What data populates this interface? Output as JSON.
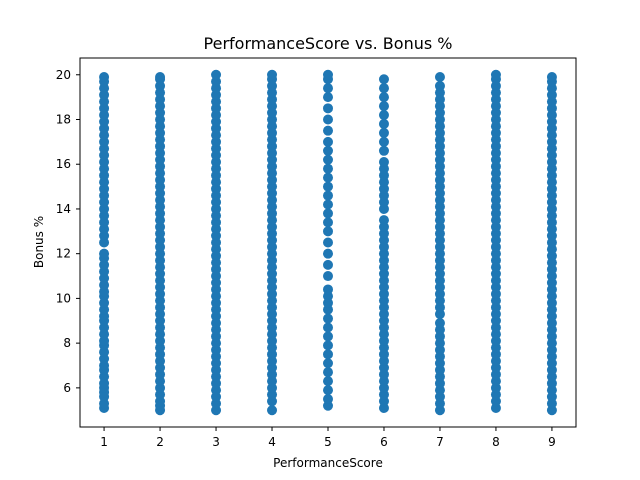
{
  "chart_data": {
    "type": "scatter",
    "title": "PerformanceScore vs. Bonus %",
    "xlabel": "PerformanceScore",
    "ylabel": "Bonus %",
    "xlim": [
      0.57,
      9.43
    ],
    "ylim": [
      4.25,
      20.75
    ],
    "xticks": [
      1,
      2,
      3,
      4,
      5,
      6,
      7,
      8,
      9
    ],
    "yticks": [
      6,
      8,
      10,
      12,
      14,
      16,
      18,
      20
    ],
    "grid": false,
    "marker_color": "#1f77b4",
    "series": [
      {
        "points": [
          {
            "x": 1,
            "y": [
              5.1,
              5.3,
              5.6,
              5.8,
              6.0,
              6.2,
              6.5,
              6.8,
              7.0,
              7.3,
              7.6,
              7.9,
              8.1,
              8.4,
              8.7,
              9.0,
              9.2,
              9.5,
              9.8,
              10.1,
              10.3,
              10.6,
              10.9,
              11.2,
              11.5,
              11.8,
              12.0,
              12.5,
              12.8,
              13.1,
              13.4,
              13.7,
              14.0,
              14.3,
              14.6,
              14.9,
              15.2,
              15.5,
              15.8,
              16.1,
              16.4,
              16.7,
              17.0,
              17.3,
              17.6,
              17.9,
              18.2,
              18.5,
              18.8,
              19.1,
              19.4,
              19.7,
              19.9
            ]
          },
          {
            "x": 2,
            "y": [
              5.0,
              5.2,
              5.4,
              5.7,
              6.0,
              6.3,
              6.6,
              6.9,
              7.2,
              7.5,
              7.8,
              8.1,
              8.4,
              8.7,
              9.0,
              9.3,
              9.6,
              9.9,
              10.2,
              10.5,
              10.8,
              11.1,
              11.4,
              11.7,
              12.0,
              12.3,
              12.6,
              12.9,
              13.2,
              13.5,
              13.8,
              14.1,
              14.4,
              14.7,
              15.0,
              15.3,
              15.6,
              15.9,
              16.2,
              16.5,
              16.8,
              17.1,
              17.4,
              17.7,
              18.0,
              18.3,
              18.6,
              18.9,
              19.2,
              19.5,
              19.8,
              19.9
            ]
          },
          {
            "x": 3,
            "y": [
              5.0,
              5.3,
              5.6,
              5.9,
              6.2,
              6.5,
              6.8,
              7.1,
              7.4,
              7.7,
              8.0,
              8.3,
              8.6,
              8.9,
              9.2,
              9.5,
              9.8,
              10.1,
              10.4,
              10.7,
              11.0,
              11.3,
              11.6,
              11.9,
              12.2,
              12.5,
              12.8,
              13.1,
              13.4,
              13.7,
              14.0,
              14.3,
              14.6,
              14.9,
              15.2,
              15.5,
              15.8,
              16.1,
              16.4,
              16.7,
              17.0,
              17.3,
              17.6,
              17.9,
              18.2,
              18.5,
              18.8,
              19.1,
              19.4,
              19.7,
              20.0
            ]
          },
          {
            "x": 4,
            "y": [
              5.0,
              5.4,
              5.7,
              6.0,
              6.3,
              6.6,
              6.9,
              7.2,
              7.5,
              7.8,
              8.1,
              8.4,
              8.7,
              9.0,
              9.3,
              9.6,
              9.9,
              10.2,
              10.5,
              10.8,
              11.1,
              11.4,
              11.7,
              12.0,
              12.3,
              12.6,
              12.9,
              13.2,
              13.5,
              13.8,
              14.1,
              14.4,
              14.7,
              15.0,
              15.3,
              15.6,
              15.9,
              16.2,
              16.5,
              16.8,
              17.1,
              17.4,
              17.7,
              18.0,
              18.3,
              18.6,
              18.9,
              19.2,
              19.5,
              19.8,
              20.0
            ]
          },
          {
            "x": 5,
            "y": [
              5.2,
              5.5,
              5.9,
              6.3,
              6.7,
              7.1,
              7.5,
              7.9,
              8.3,
              8.7,
              9.1,
              9.5,
              9.8,
              10.1,
              10.4,
              11.0,
              11.5,
              12.0,
              12.5,
              13.0,
              13.4,
              13.8,
              14.2,
              14.6,
              15.0,
              15.4,
              15.8,
              16.2,
              16.6,
              17.0,
              17.5,
              18.0,
              18.5,
              19.0,
              19.4,
              19.8,
              20.0
            ]
          },
          {
            "x": 6,
            "y": [
              5.1,
              5.4,
              5.7,
              6.0,
              6.3,
              6.6,
              6.9,
              7.2,
              7.5,
              7.8,
              8.1,
              8.4,
              8.7,
              9.0,
              9.3,
              9.6,
              9.9,
              10.2,
              10.5,
              10.8,
              11.1,
              11.4,
              11.7,
              12.0,
              12.3,
              12.6,
              12.9,
              13.2,
              13.5,
              14.0,
              14.3,
              14.6,
              14.9,
              15.2,
              15.5,
              15.8,
              16.1,
              16.6,
              17.0,
              17.4,
              17.8,
              18.2,
              18.6,
              19.0,
              19.4,
              19.8
            ]
          },
          {
            "x": 7,
            "y": [
              5.0,
              5.3,
              5.6,
              5.9,
              6.2,
              6.5,
              6.8,
              7.1,
              7.4,
              7.7,
              8.0,
              8.3,
              8.6,
              8.9,
              9.3,
              9.6,
              9.9,
              10.2,
              10.5,
              10.8,
              11.1,
              11.4,
              11.7,
              12.0,
              12.3,
              12.6,
              12.9,
              13.2,
              13.5,
              13.8,
              14.1,
              14.4,
              14.7,
              15.0,
              15.3,
              15.6,
              15.9,
              16.2,
              16.5,
              16.8,
              17.1,
              17.4,
              17.7,
              18.0,
              18.3,
              18.6,
              18.9,
              19.2,
              19.5,
              19.9
            ]
          },
          {
            "x": 8,
            "y": [
              5.1,
              5.4,
              5.7,
              6.0,
              6.3,
              6.6,
              6.9,
              7.2,
              7.5,
              7.8,
              8.1,
              8.4,
              8.7,
              9.0,
              9.3,
              9.6,
              9.9,
              10.2,
              10.5,
              10.8,
              11.1,
              11.4,
              11.7,
              12.0,
              12.3,
              12.6,
              12.9,
              13.2,
              13.5,
              13.8,
              14.1,
              14.4,
              14.7,
              15.0,
              15.3,
              15.6,
              15.9,
              16.2,
              16.5,
              16.8,
              17.1,
              17.4,
              17.7,
              18.0,
              18.3,
              18.6,
              18.9,
              19.2,
              19.5,
              19.8,
              20.0
            ]
          },
          {
            "x": 9,
            "y": [
              5.0,
              5.3,
              5.6,
              5.9,
              6.2,
              6.5,
              6.8,
              7.1,
              7.4,
              7.7,
              8.0,
              8.3,
              8.6,
              8.9,
              9.2,
              9.5,
              9.8,
              10.1,
              10.4,
              10.7,
              11.0,
              11.3,
              11.6,
              11.9,
              12.2,
              12.5,
              12.8,
              13.1,
              13.4,
              13.7,
              14.0,
              14.3,
              14.6,
              14.9,
              15.2,
              15.5,
              15.8,
              16.1,
              16.4,
              16.7,
              17.0,
              17.3,
              17.6,
              17.9,
              18.2,
              18.5,
              18.8,
              19.1,
              19.4,
              19.7,
              19.9
            ]
          }
        ]
      }
    ]
  }
}
